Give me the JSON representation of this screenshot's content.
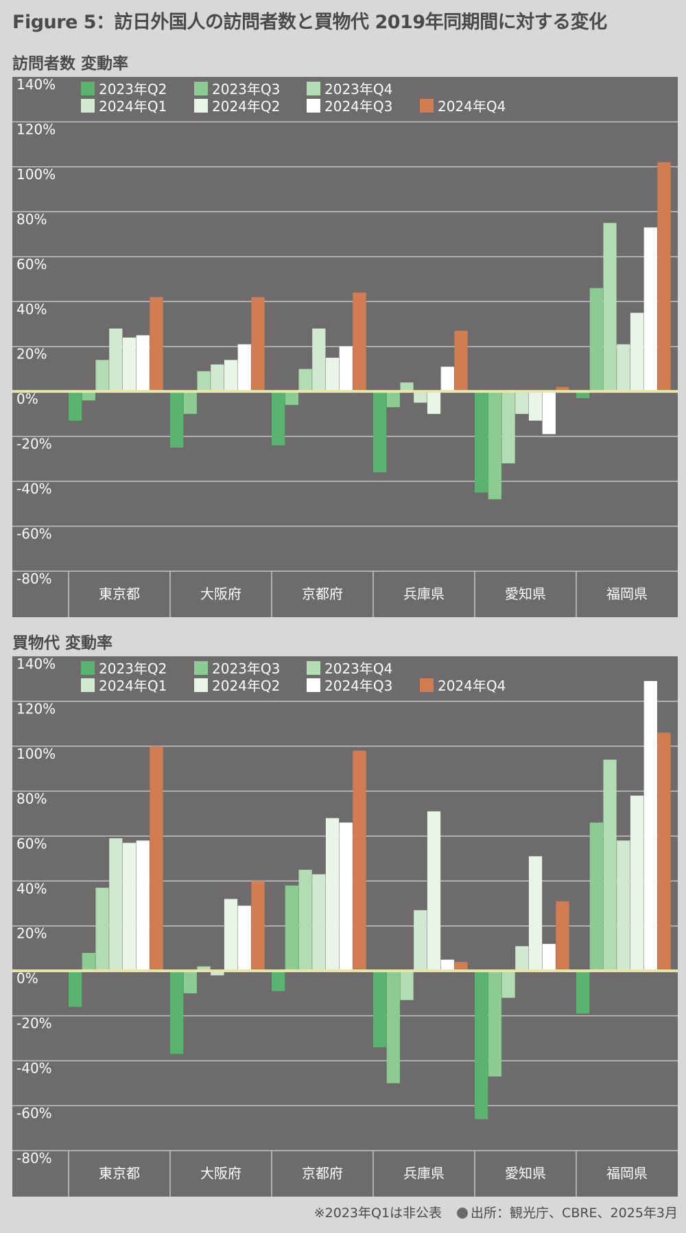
{
  "title": "Figure 5：訪日外国人の訪問者数と買物代 2019年同期間に対する変化",
  "colors": {
    "2023年Q2": "#5ab36e",
    "2023年Q3": "#8ccc93",
    "2023年Q4": "#b2dcb2",
    "2024年Q1": "#d0e9d0",
    "2024年Q2": "#e9f5e7",
    "2024年Q3": "#ffffff",
    "2024年Q4": "#d27c52",
    "plot_background": "#6d6b6c",
    "zero_line": "#e9e7a8",
    "gridline": "#c4c4c4"
  },
  "chart_data": [
    {
      "type": "bar",
      "title": "訪問者数 変動率",
      "categories": [
        "東京都",
        "大阪府",
        "京都府",
        "兵庫県",
        "愛知県",
        "福岡県"
      ],
      "ylim": [
        -80,
        140
      ],
      "yticks": [
        140,
        120,
        100,
        80,
        60,
        40,
        20,
        0,
        -20,
        -40,
        -60,
        -80
      ],
      "ytick_labels": [
        "140%",
        "120%",
        "100%",
        "80%",
        "60%",
        "40%",
        "20%",
        "0%",
        "-20%",
        "-40%",
        "-60%",
        "-80%"
      ],
      "legend_position": "top-left",
      "grid": true,
      "series": [
        {
          "name": "2023年Q2",
          "values": [
            -13,
            -25,
            -24,
            -36,
            -45,
            -3
          ]
        },
        {
          "name": "2023年Q3",
          "values": [
            -4,
            -10,
            -6,
            -7,
            -48,
            46
          ]
        },
        {
          "name": "2023年Q4",
          "values": [
            14,
            9,
            10,
            4,
            -32,
            75
          ]
        },
        {
          "name": "2024年Q1",
          "values": [
            28,
            12,
            28,
            -5,
            -10,
            21
          ]
        },
        {
          "name": "2024年Q2",
          "values": [
            24,
            14,
            15,
            -10,
            -13,
            35
          ]
        },
        {
          "name": "2024年Q3",
          "values": [
            25,
            21,
            20,
            11,
            -19,
            73
          ]
        },
        {
          "name": "2024年Q4",
          "values": [
            42,
            42,
            44,
            27,
            2,
            102
          ]
        }
      ]
    },
    {
      "type": "bar",
      "title": "買物代 変動率",
      "categories": [
        "東京都",
        "大阪府",
        "京都府",
        "兵庫県",
        "愛知県",
        "福岡県"
      ],
      "ylim": [
        -80,
        140
      ],
      "yticks": [
        140,
        120,
        100,
        80,
        60,
        40,
        20,
        0,
        -20,
        -40,
        -60,
        -80
      ],
      "ytick_labels": [
        "140%",
        "120%",
        "100%",
        "80%",
        "60%",
        "40%",
        "20%",
        "0%",
        "-20%",
        "-40%",
        "-60%",
        "-80%"
      ],
      "legend_position": "top-left",
      "grid": true,
      "series": [
        {
          "name": "2023年Q2",
          "values": [
            -16,
            -37,
            -9,
            -34,
            -66,
            -19
          ]
        },
        {
          "name": "2023年Q3",
          "values": [
            8,
            -10,
            38,
            -50,
            -47,
            66
          ]
        },
        {
          "name": "2023年Q4",
          "values": [
            37,
            2,
            45,
            -13,
            -12,
            94
          ]
        },
        {
          "name": "2024年Q1",
          "values": [
            59,
            -2,
            43,
            27,
            11,
            58
          ]
        },
        {
          "name": "2024年Q2",
          "values": [
            57,
            32,
            68,
            71,
            51,
            78
          ]
        },
        {
          "name": "2024年Q3",
          "values": [
            58,
            29,
            66,
            5,
            12,
            129
          ]
        },
        {
          "name": "2024年Q4",
          "values": [
            100,
            40,
            98,
            4,
            31,
            106
          ]
        }
      ]
    }
  ],
  "footer": {
    "note": "※2023年Q1は非公表",
    "source": "出所：観光庁、CBRE、2025年3月"
  }
}
